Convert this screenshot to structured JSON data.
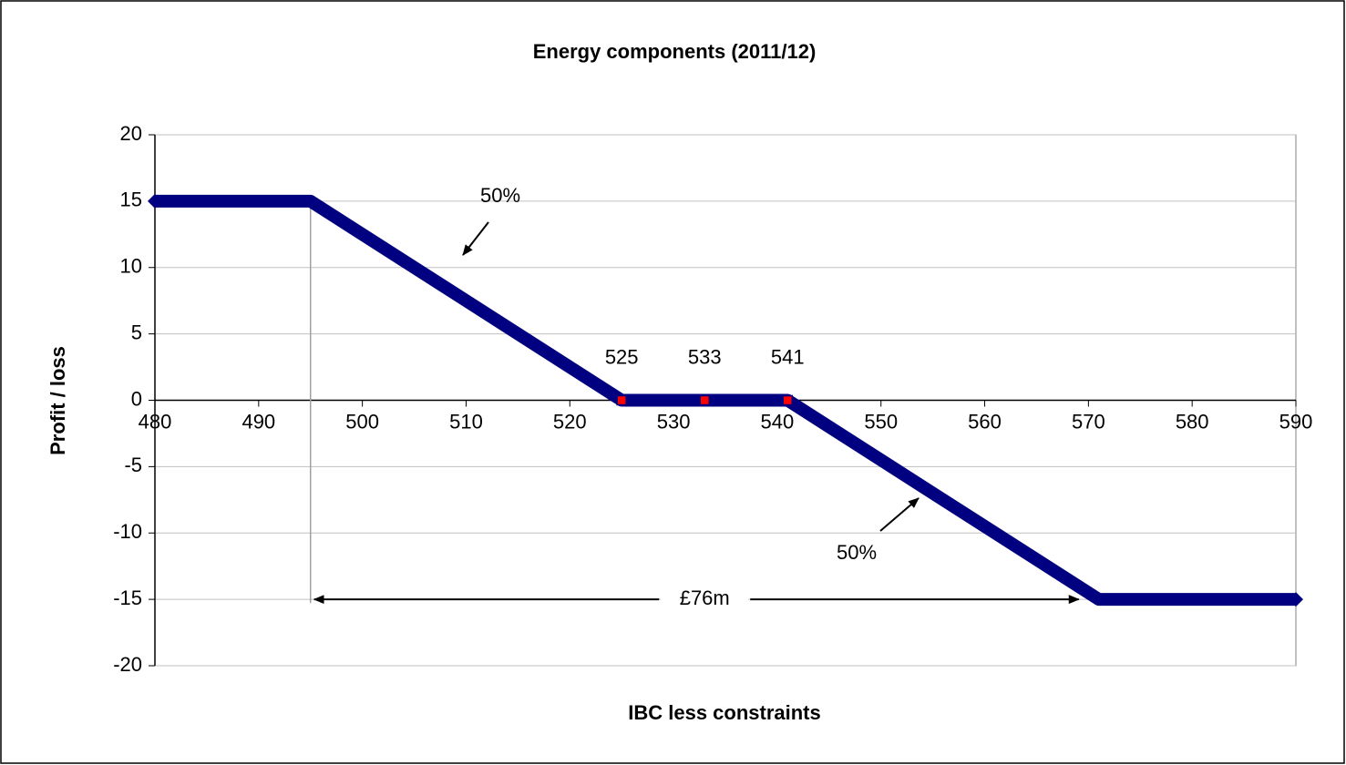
{
  "chart_data": {
    "type": "line",
    "title": "Energy components (2011/12)",
    "x_label": "IBC less constraints",
    "y_label": "Profit / loss",
    "xlim": [
      480,
      590
    ],
    "xticks": [
      480,
      490,
      500,
      510,
      520,
      530,
      540,
      550,
      560,
      570,
      580,
      590
    ],
    "ylim": [
      -20,
      20
    ],
    "yticks": [
      -20,
      -15,
      -10,
      -5,
      0,
      5,
      10,
      15,
      20
    ],
    "grid": true,
    "series": [
      {
        "color": "#000080",
        "marker": "diamond",
        "x": [
          480,
          495,
          525,
          541,
          571,
          590
        ],
        "values": [
          15,
          15,
          0,
          0,
          -15,
          -15
        ]
      },
      {
        "color": "#ff0000",
        "marker": "square",
        "x": [
          525,
          533,
          541
        ],
        "values": [
          0,
          0,
          0
        ]
      }
    ],
    "annotations": [
      "50%",
      "50%",
      "£76m"
    ]
  }
}
